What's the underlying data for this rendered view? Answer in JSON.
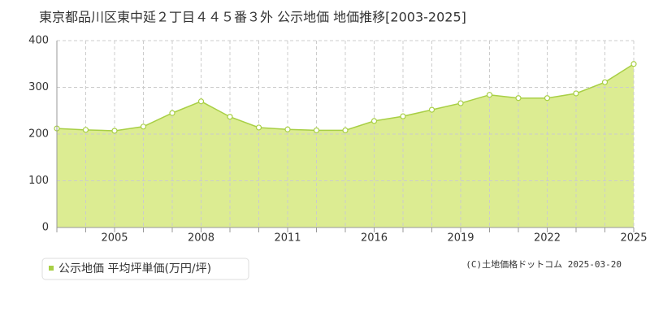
{
  "chart_data": {
    "type": "area",
    "title": "東京都品川区東中延２丁目４４５番３外 公示地価 地価推移[2003-2025]",
    "categories": [
      null,
      null,
      "2005",
      null,
      null,
      "2008",
      null,
      null,
      "2011",
      null,
      null,
      "2016",
      null,
      null,
      "2019",
      null,
      null,
      "2022",
      null,
      null,
      "2025"
    ],
    "series": [
      {
        "name": "公示地価 平均坪単価(万円/坪)",
        "color": "#a8cf45",
        "values": [
          212,
          209,
          207,
          216,
          245,
          270,
          237,
          214,
          210,
          208,
          208,
          228,
          238,
          252,
          266,
          284,
          277,
          277,
          287,
          311,
          350
        ]
      }
    ],
    "ylim": [
      0,
      400
    ],
    "yticks": [
      0,
      100,
      200,
      300,
      400
    ],
    "grid": true,
    "credit": "(C)土地価格ドットコム 2025-03-20"
  }
}
